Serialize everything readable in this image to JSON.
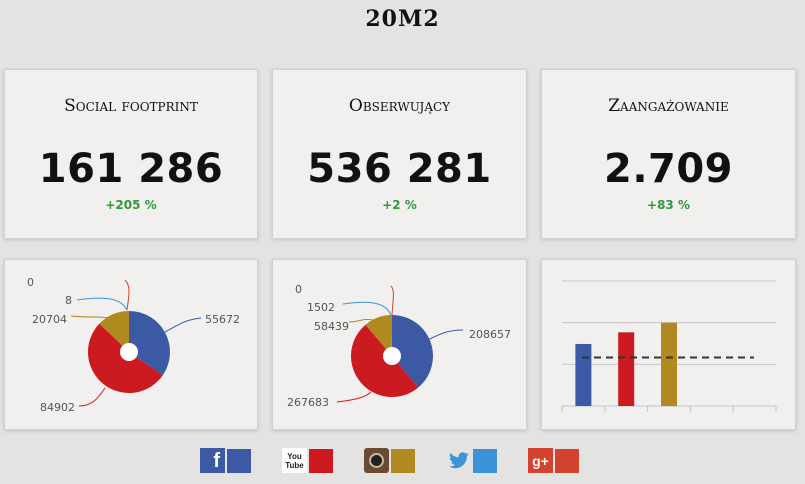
{
  "page": {
    "title": "20M2"
  },
  "kpis": [
    {
      "label": "Social footprint",
      "value": "161 286",
      "change": "+205 %"
    },
    {
      "label": "Obserwujący",
      "value": "536 281",
      "change": "+2 %"
    },
    {
      "label": "Zaangażowanie",
      "value": "2.709",
      "change": "+83 %"
    }
  ],
  "colors": {
    "facebook": "#3b5aa3",
    "youtube": "#cc1a21",
    "instagram": "#b08a1f",
    "twitter": "#3b94d9",
    "googleplus": "#d2432f",
    "positive": "#2e9a3a"
  },
  "chart_data": [
    {
      "type": "pie",
      "labels": [
        "55672",
        "84902",
        "20704",
        "8",
        "0"
      ],
      "values": [
        55672,
        84902,
        20704,
        8,
        0
      ],
      "series_colors": [
        "#3b5aa3",
        "#cc1a21",
        "#b08a1f",
        "#3b94d9",
        "#d2432f"
      ]
    },
    {
      "type": "pie",
      "labels": [
        "208657",
        "267683",
        "58439",
        "1502",
        "0"
      ],
      "values": [
        208657,
        267683,
        58439,
        1502,
        0
      ],
      "series_colors": [
        "#3b5aa3",
        "#cc1a21",
        "#b08a1f",
        "#3b94d9",
        "#d2432f"
      ]
    },
    {
      "type": "bar",
      "categories": [
        "facebook",
        "youtube",
        "instagram",
        "twitter",
        "googleplus"
      ],
      "values": [
        3.2,
        3.8,
        4.3,
        0,
        0
      ],
      "average": 2.5,
      "ylim": [
        0,
        6.5
      ],
      "grid": true
    }
  ],
  "social_icons": [
    {
      "name": "facebook",
      "glyph": "f"
    },
    {
      "name": "youtube",
      "glyph": "You Tube"
    },
    {
      "name": "instagram",
      "glyph": ""
    },
    {
      "name": "twitter",
      "glyph": ""
    },
    {
      "name": "googleplus",
      "glyph": "g+"
    }
  ]
}
